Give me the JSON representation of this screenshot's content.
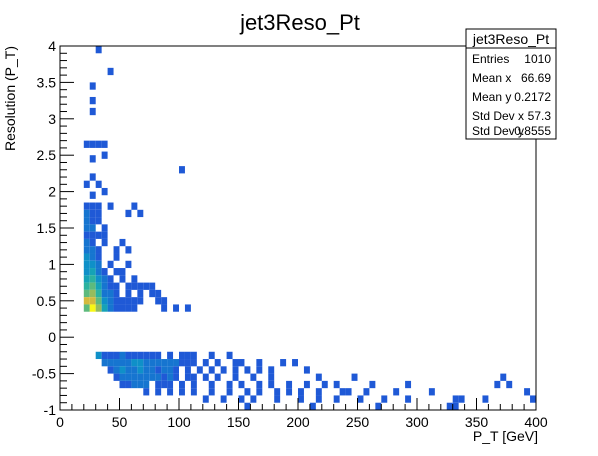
{
  "chart_data": {
    "type": "heatmap",
    "title": "jet3Reso_Pt",
    "xlabel": "P_T [GeV]",
    "ylabel": "Resolution (P_T)",
    "xlim": [
      0,
      400
    ],
    "ylim": [
      -1,
      4
    ],
    "x_ticks": [
      0,
      50,
      100,
      150,
      200,
      250,
      300,
      350,
      400
    ],
    "y_ticks": [
      -1,
      -0.5,
      0,
      0.5,
      1,
      1.5,
      2,
      2.5,
      3,
      3.5,
      4
    ],
    "bin_width_x": 5,
    "bin_width_y": 0.1,
    "stats_box": {
      "title": "jet3Reso_Pt",
      "rows": [
        {
          "label": "Entries",
          "value": "1010"
        },
        {
          "label": "Mean x",
          "value": "66.69"
        },
        {
          "label": "Mean y",
          "value": "0.2172"
        },
        {
          "label": "Std Dev x",
          "value": "57.3"
        },
        {
          "label": "Std Dev y",
          "value": "0.8555"
        }
      ]
    },
    "bins": [
      [
        30,
        3.9,
        1
      ],
      [
        40,
        3.6,
        1
      ],
      [
        25,
        3.4,
        1
      ],
      [
        25,
        3.2,
        1
      ],
      [
        25,
        3.05,
        1
      ],
      [
        20,
        2.6,
        1
      ],
      [
        25,
        2.6,
        1
      ],
      [
        30,
        2.6,
        1
      ],
      [
        35,
        2.6,
        1
      ],
      [
        25,
        2.4,
        1
      ],
      [
        35,
        2.45,
        1
      ],
      [
        100,
        2.25,
        1
      ],
      [
        25,
        2.15,
        1
      ],
      [
        20,
        2.05,
        1
      ],
      [
        30,
        2.05,
        1
      ],
      [
        35,
        1.95,
        1
      ],
      [
        25,
        1.9,
        1
      ],
      [
        20,
        1.75,
        1
      ],
      [
        25,
        1.75,
        1
      ],
      [
        30,
        1.75,
        1
      ],
      [
        40,
        1.75,
        1
      ],
      [
        60,
        1.75,
        1
      ],
      [
        20,
        1.65,
        2
      ],
      [
        25,
        1.65,
        1
      ],
      [
        30,
        1.65,
        1
      ],
      [
        55,
        1.65,
        1
      ],
      [
        65,
        1.65,
        1
      ],
      [
        20,
        1.55,
        2
      ],
      [
        25,
        1.55,
        1
      ],
      [
        30,
        1.55,
        1
      ],
      [
        20,
        1.45,
        2
      ],
      [
        25,
        1.45,
        2
      ],
      [
        35,
        1.45,
        1
      ],
      [
        20,
        1.35,
        1
      ],
      [
        25,
        1.35,
        1
      ],
      [
        30,
        1.35,
        1
      ],
      [
        35,
        1.35,
        1
      ],
      [
        20,
        1.25,
        2
      ],
      [
        25,
        1.25,
        1
      ],
      [
        35,
        1.25,
        1
      ],
      [
        50,
        1.25,
        1
      ],
      [
        20,
        1.15,
        2
      ],
      [
        25,
        1.15,
        2
      ],
      [
        30,
        1.15,
        1
      ],
      [
        45,
        1.15,
        1
      ],
      [
        55,
        1.15,
        1
      ],
      [
        20,
        1.05,
        3
      ],
      [
        25,
        1.05,
        2
      ],
      [
        30,
        1.05,
        1
      ],
      [
        45,
        1.05,
        1
      ],
      [
        20,
        0.95,
        3
      ],
      [
        25,
        0.95,
        3
      ],
      [
        30,
        0.95,
        2
      ],
      [
        40,
        0.95,
        1
      ],
      [
        55,
        0.95,
        1
      ],
      [
        20,
        0.85,
        3
      ],
      [
        25,
        0.85,
        4
      ],
      [
        30,
        0.85,
        2
      ],
      [
        35,
        0.85,
        1
      ],
      [
        45,
        0.85,
        1
      ],
      [
        50,
        0.85,
        1
      ],
      [
        20,
        0.75,
        4
      ],
      [
        25,
        0.75,
        5
      ],
      [
        30,
        0.75,
        3
      ],
      [
        35,
        0.75,
        2
      ],
      [
        40,
        0.75,
        1
      ],
      [
        50,
        0.75,
        1
      ],
      [
        60,
        0.75,
        1
      ],
      [
        20,
        0.65,
        5
      ],
      [
        25,
        0.65,
        6
      ],
      [
        30,
        0.65,
        4
      ],
      [
        35,
        0.65,
        2
      ],
      [
        40,
        0.65,
        1
      ],
      [
        45,
        0.65,
        1
      ],
      [
        55,
        0.65,
        1
      ],
      [
        60,
        0.65,
        1
      ],
      [
        65,
        0.65,
        1
      ],
      [
        70,
        0.65,
        1
      ],
      [
        75,
        0.65,
        1
      ],
      [
        20,
        0.55,
        6
      ],
      [
        25,
        0.55,
        7
      ],
      [
        30,
        0.55,
        5
      ],
      [
        35,
        0.55,
        2
      ],
      [
        40,
        0.55,
        2
      ],
      [
        45,
        0.55,
        1
      ],
      [
        55,
        0.55,
        1
      ],
      [
        65,
        0.55,
        1
      ],
      [
        75,
        0.55,
        1
      ],
      [
        80,
        0.55,
        1
      ],
      [
        20,
        0.45,
        8
      ],
      [
        25,
        0.45,
        8
      ],
      [
        30,
        0.45,
        6
      ],
      [
        35,
        0.45,
        3
      ],
      [
        40,
        0.45,
        2
      ],
      [
        45,
        0.45,
        1
      ],
      [
        50,
        0.45,
        1
      ],
      [
        55,
        0.45,
        1
      ],
      [
        60,
        0.45,
        1
      ],
      [
        65,
        0.45,
        1
      ],
      [
        80,
        0.45,
        1
      ],
      [
        85,
        0.45,
        1
      ],
      [
        20,
        0.35,
        6
      ],
      [
        25,
        0.35,
        10
      ],
      [
        30,
        0.35,
        7
      ],
      [
        35,
        0.35,
        4
      ],
      [
        40,
        0.35,
        2
      ],
      [
        45,
        0.35,
        1
      ],
      [
        50,
        0.35,
        1
      ],
      [
        55,
        0.35,
        1
      ],
      [
        60,
        0.35,
        1
      ],
      [
        85,
        0.35,
        1
      ],
      [
        95,
        0.35,
        1
      ],
      [
        105,
        0.35,
        1
      ],
      [
        30,
        -0.3,
        3
      ],
      [
        35,
        -0.3,
        1
      ],
      [
        40,
        -0.3,
        1
      ],
      [
        45,
        -0.3,
        1
      ],
      [
        50,
        -0.3,
        2
      ],
      [
        55,
        -0.3,
        1
      ],
      [
        60,
        -0.3,
        1
      ],
      [
        65,
        -0.3,
        1
      ],
      [
        70,
        -0.3,
        1
      ],
      [
        75,
        -0.3,
        1
      ],
      [
        80,
        -0.3,
        1
      ],
      [
        90,
        -0.3,
        1
      ],
      [
        100,
        -0.3,
        1
      ],
      [
        105,
        -0.3,
        1
      ],
      [
        110,
        -0.3,
        1
      ],
      [
        125,
        -0.3,
        1
      ],
      [
        140,
        -0.3,
        1
      ],
      [
        35,
        -0.4,
        2
      ],
      [
        40,
        -0.4,
        2
      ],
      [
        45,
        -0.4,
        2
      ],
      [
        50,
        -0.4,
        2
      ],
      [
        55,
        -0.4,
        2
      ],
      [
        60,
        -0.4,
        3
      ],
      [
        65,
        -0.4,
        3
      ],
      [
        70,
        -0.4,
        2
      ],
      [
        75,
        -0.4,
        2
      ],
      [
        80,
        -0.4,
        2
      ],
      [
        85,
        -0.4,
        2
      ],
      [
        90,
        -0.4,
        2
      ],
      [
        95,
        -0.4,
        2
      ],
      [
        100,
        -0.4,
        1
      ],
      [
        105,
        -0.4,
        1
      ],
      [
        110,
        -0.4,
        1
      ],
      [
        120,
        -0.4,
        1
      ],
      [
        130,
        -0.4,
        1
      ],
      [
        145,
        -0.4,
        1
      ],
      [
        150,
        -0.4,
        1
      ],
      [
        165,
        -0.4,
        1
      ],
      [
        185,
        -0.4,
        1
      ],
      [
        195,
        -0.4,
        1
      ],
      [
        40,
        -0.5,
        1
      ],
      [
        45,
        -0.5,
        2
      ],
      [
        50,
        -0.5,
        3
      ],
      [
        55,
        -0.5,
        2
      ],
      [
        60,
        -0.5,
        2
      ],
      [
        65,
        -0.5,
        3
      ],
      [
        70,
        -0.5,
        2
      ],
      [
        75,
        -0.5,
        2
      ],
      [
        80,
        -0.5,
        1
      ],
      [
        85,
        -0.5,
        2
      ],
      [
        90,
        -0.5,
        2
      ],
      [
        95,
        -0.5,
        1
      ],
      [
        105,
        -0.5,
        1
      ],
      [
        115,
        -0.5,
        1
      ],
      [
        125,
        -0.5,
        1
      ],
      [
        135,
        -0.5,
        1
      ],
      [
        145,
        -0.5,
        1
      ],
      [
        155,
        -0.5,
        1
      ],
      [
        165,
        -0.5,
        1
      ],
      [
        175,
        -0.5,
        1
      ],
      [
        205,
        -0.5,
        1
      ],
      [
        45,
        -0.6,
        1
      ],
      [
        50,
        -0.6,
        2
      ],
      [
        55,
        -0.6,
        2
      ],
      [
        60,
        -0.6,
        2
      ],
      [
        65,
        -0.6,
        2
      ],
      [
        70,
        -0.6,
        2
      ],
      [
        75,
        -0.6,
        2
      ],
      [
        80,
        -0.6,
        2
      ],
      [
        85,
        -0.6,
        1
      ],
      [
        90,
        -0.6,
        2
      ],
      [
        95,
        -0.6,
        1
      ],
      [
        105,
        -0.6,
        1
      ],
      [
        110,
        -0.6,
        1
      ],
      [
        120,
        -0.6,
        1
      ],
      [
        130,
        -0.6,
        1
      ],
      [
        145,
        -0.6,
        1
      ],
      [
        160,
        -0.6,
        1
      ],
      [
        175,
        -0.6,
        1
      ],
      [
        215,
        -0.6,
        1
      ],
      [
        245,
        -0.6,
        1
      ],
      [
        370,
        -0.6,
        1
      ],
      [
        50,
        -0.7,
        1
      ],
      [
        55,
        -0.7,
        1
      ],
      [
        60,
        -0.7,
        2
      ],
      [
        65,
        -0.7,
        2
      ],
      [
        70,
        -0.7,
        2
      ],
      [
        80,
        -0.7,
        1
      ],
      [
        85,
        -0.7,
        1
      ],
      [
        90,
        -0.7,
        1
      ],
      [
        100,
        -0.7,
        1
      ],
      [
        110,
        -0.7,
        1
      ],
      [
        125,
        -0.7,
        1
      ],
      [
        140,
        -0.7,
        1
      ],
      [
        150,
        -0.7,
        1
      ],
      [
        165,
        -0.7,
        1
      ],
      [
        175,
        -0.7,
        1
      ],
      [
        190,
        -0.7,
        1
      ],
      [
        205,
        -0.7,
        1
      ],
      [
        220,
        -0.7,
        1
      ],
      [
        230,
        -0.7,
        1
      ],
      [
        260,
        -0.7,
        1
      ],
      [
        290,
        -0.7,
        1
      ],
      [
        365,
        -0.7,
        1
      ],
      [
        375,
        -0.7,
        1
      ],
      [
        70,
        -0.8,
        1
      ],
      [
        80,
        -0.8,
        1
      ],
      [
        90,
        -0.8,
        1
      ],
      [
        100,
        -0.8,
        1
      ],
      [
        110,
        -0.8,
        1
      ],
      [
        125,
        -0.8,
        1
      ],
      [
        140,
        -0.8,
        1
      ],
      [
        155,
        -0.8,
        1
      ],
      [
        165,
        -0.8,
        1
      ],
      [
        180,
        -0.8,
        1
      ],
      [
        190,
        -0.8,
        1
      ],
      [
        200,
        -0.8,
        1
      ],
      [
        215,
        -0.8,
        1
      ],
      [
        235,
        -0.8,
        1
      ],
      [
        240,
        -0.8,
        1
      ],
      [
        255,
        -0.8,
        1
      ],
      [
        280,
        -0.8,
        1
      ],
      [
        310,
        -0.8,
        1
      ],
      [
        390,
        -0.8,
        1
      ],
      [
        120,
        -0.9,
        1
      ],
      [
        135,
        -0.9,
        1
      ],
      [
        150,
        -0.9,
        1
      ],
      [
        160,
        -0.9,
        1
      ],
      [
        180,
        -0.9,
        1
      ],
      [
        200,
        -0.9,
        1
      ],
      [
        215,
        -0.9,
        1
      ],
      [
        230,
        -0.9,
        1
      ],
      [
        250,
        -0.9,
        1
      ],
      [
        270,
        -0.9,
        1
      ],
      [
        290,
        -0.9,
        1
      ],
      [
        330,
        -0.9,
        1
      ],
      [
        335,
        -0.9,
        1
      ],
      [
        355,
        -0.9,
        1
      ],
      [
        395,
        -0.9,
        1
      ],
      [
        155,
        -1.0,
        1
      ],
      [
        210,
        -1.0,
        1
      ],
      [
        265,
        -1.0,
        1
      ],
      [
        325,
        -1.0,
        1
      ],
      [
        330,
        -1.0,
        1
      ]
    ]
  }
}
